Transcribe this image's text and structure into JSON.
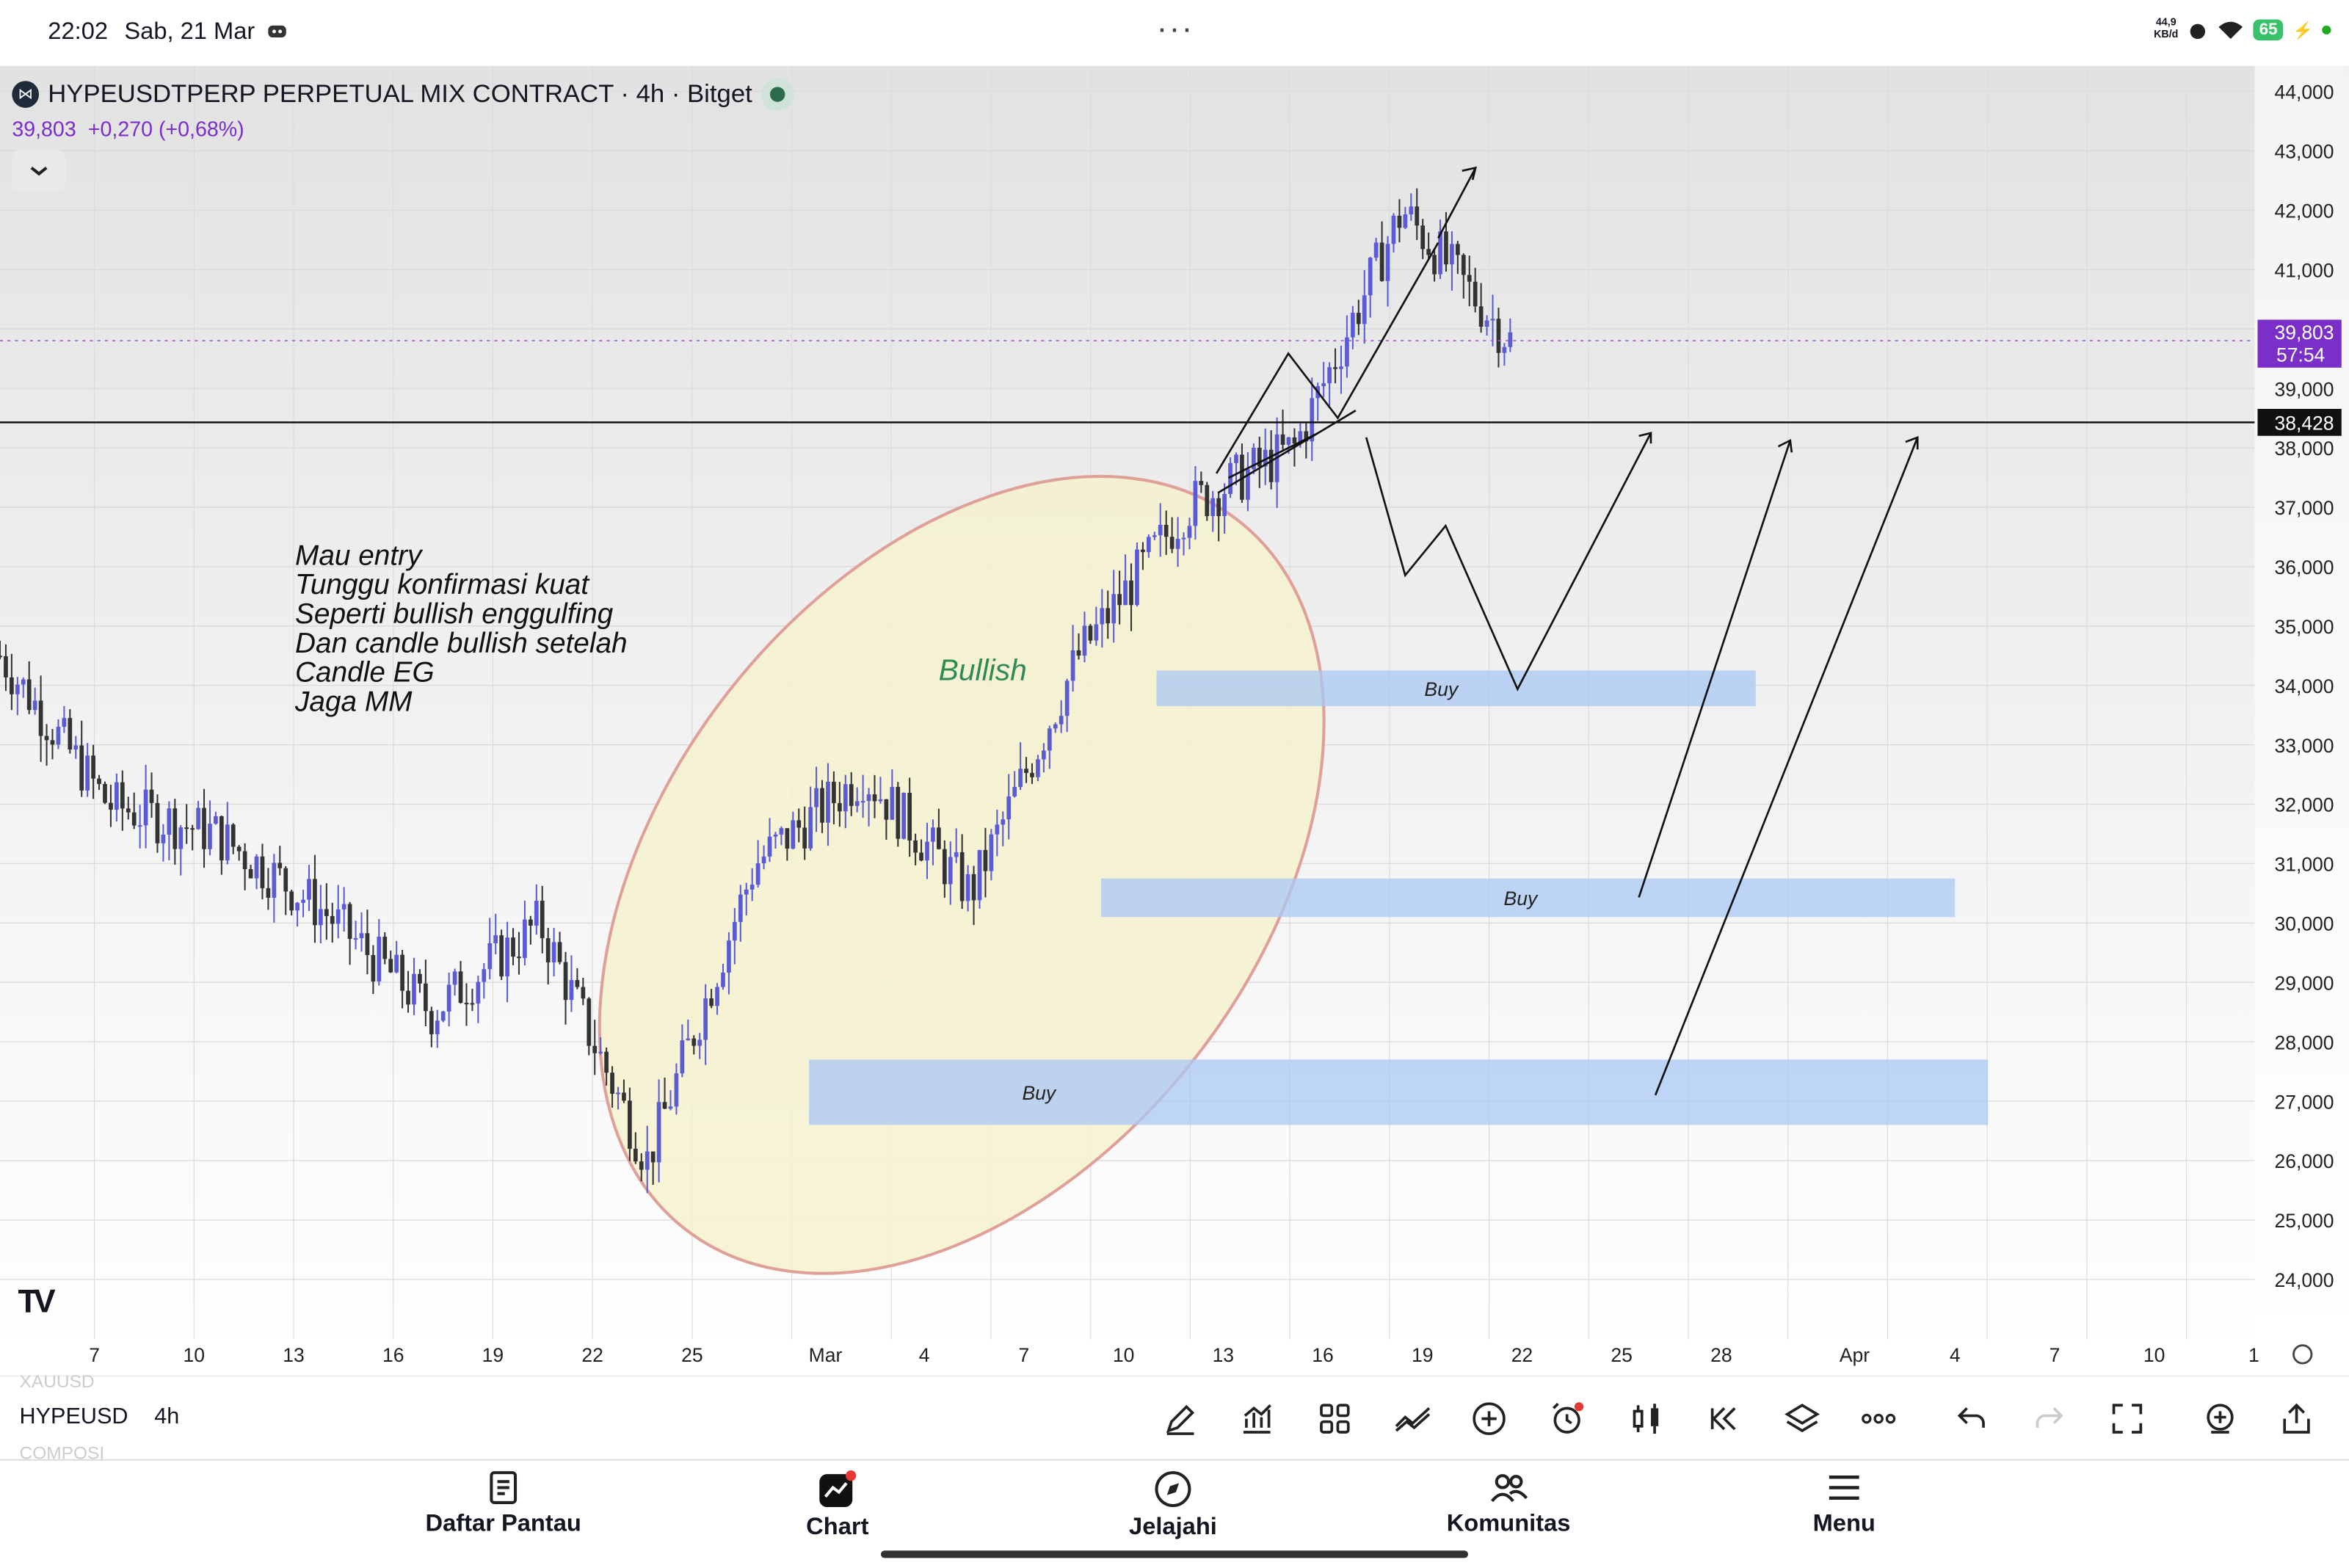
{
  "status": {
    "time": "22:02",
    "date": "Sab, 21 Mar",
    "net_speed_top": "44,9",
    "net_speed_bottom": "KB/d",
    "battery": "65"
  },
  "chart_header": {
    "symbol": "HYPEUSDTPERP PERPETUAL MIX CONTRACT · 4h · Bitget",
    "last": "39,803",
    "change": "+0,270 (+0,68%)"
  },
  "price_scale": [
    "44,000",
    "43,000",
    "42,000",
    "41,000",
    "40,000",
    "39,000",
    "38,000",
    "37,000",
    "36,000",
    "35,000",
    "34,000",
    "33,000",
    "32,000",
    "31,000",
    "30,000",
    "29,000",
    "28,000",
    "27,000",
    "26,000",
    "25,000",
    "24,000"
  ],
  "time_scale": [
    "7",
    "10",
    "13",
    "16",
    "19",
    "22",
    "25",
    "Mar",
    "4",
    "7",
    "10",
    "13",
    "16",
    "19",
    "22",
    "25",
    "28",
    "Apr",
    "4",
    "7",
    "10",
    "1"
  ],
  "last_price_label": {
    "price": "39,803",
    "countdown": "57:54"
  },
  "horizontal_line_label": "38,428",
  "annotations": {
    "note_lines": [
      "Mau entry",
      "Tunggu konfirmasi kuat",
      "Seperti bullish enggulfing",
      "Dan candle bullish setelah",
      "Candle EG",
      "Jaga MM"
    ],
    "ellipse_label": "Bullish",
    "zones": [
      {
        "label": "Buy",
        "from": 34250,
        "to": 33650
      },
      {
        "label": "Buy",
        "from": 30750,
        "to": 30100
      },
      {
        "label": "Buy",
        "from": 27700,
        "to": 26600
      }
    ]
  },
  "chart_data": {
    "type": "candlestick",
    "title": "HYPEUSDTPERP PERPETUAL MIX CONTRACT · 4h · Bitget",
    "ylim": [
      23700,
      44400
    ],
    "x": [
      "7",
      "10",
      "13",
      "16",
      "19",
      "22",
      "25",
      "Mar",
      "4",
      "7",
      "10",
      "13",
      "16",
      "19",
      "22"
    ],
    "close_trend": [
      34500,
      32000,
      31500,
      30200,
      28500,
      30000,
      26000,
      31000,
      32500,
      30500,
      34500,
      37000,
      38000,
      42000,
      39803
    ],
    "horizontal_line": 38428
  },
  "toolbar": {
    "symbol": "HYPEUSD",
    "timeframe": "4h",
    "ghost_above": "XAUUSD",
    "ghost_below": "COMPOSI"
  },
  "nav": [
    "Daftar Pantau",
    "Chart",
    "Jelajahi",
    "Komunitas",
    "Menu"
  ],
  "colors": {
    "up": "#5b5bd6",
    "down": "#333333",
    "zone": "#a9c8f4",
    "ellipse_fill": "#f6f2cf",
    "ellipse_stroke": "#e0a09a",
    "last_price": "#7a2fc9"
  }
}
